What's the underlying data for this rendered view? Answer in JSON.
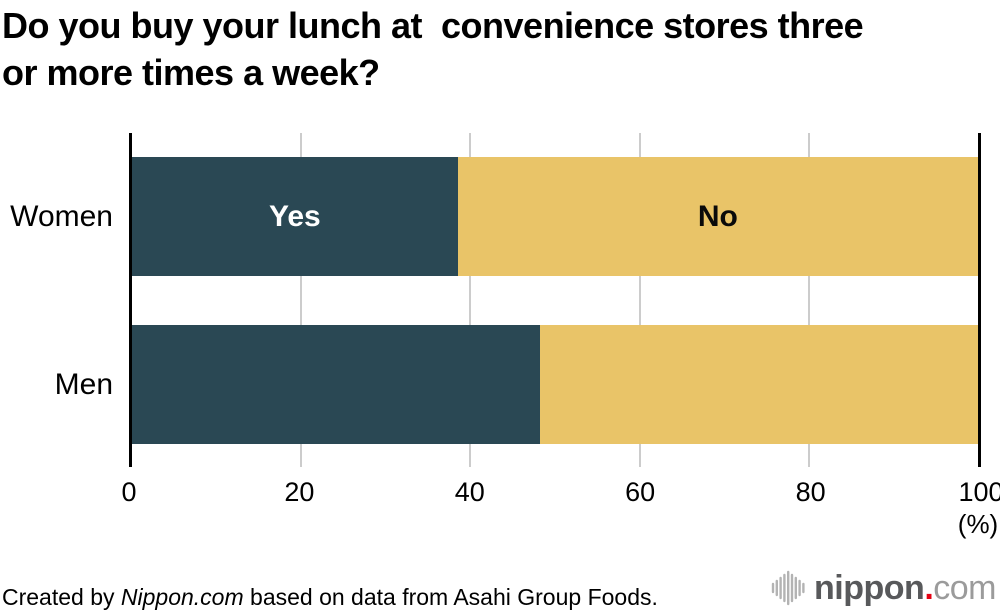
{
  "title": {
    "text": "Do you buy your lunch at  convenience stores three\nor more times a week?"
  },
  "chart_data": {
    "type": "bar",
    "orientation": "horizontal",
    "stacked": true,
    "title": "Do you buy your lunch at convenience stores three or more times a week?",
    "categories": [
      "Women",
      "Men"
    ],
    "series": [
      {
        "name": "Yes",
        "color": "#2a4854",
        "values": [
          38.5,
          48.2
        ]
      },
      {
        "name": "No",
        "color": "#e9c468",
        "values": [
          61.5,
          51.8
        ]
      }
    ],
    "xlim": [
      0,
      100
    ],
    "xticks": [
      "0",
      "20",
      "40",
      "60",
      "80",
      "100"
    ],
    "x_unit_label": "(%)",
    "grid": "vertical gray lines at 20/40/60/80, black boundary lines at 0 and 100",
    "legend": "labels drawn inside top bar segments",
    "segment_labels": {
      "yes": "Yes",
      "no": "No"
    }
  },
  "footer": {
    "prefix": "Created by ",
    "brand": "Nippon.com",
    "suffix": " based on data from Asahi Group Foods."
  },
  "logo": {
    "name": "nippon",
    "dot": ".",
    "tld": "com"
  },
  "colors": {
    "yes_bar": "#2a4854",
    "no_bar": "#e9c468",
    "gridline": "#cccccc",
    "axis": "#000000",
    "logo_icon_gray": "#b3b3b3",
    "logo_name_gray": "#58595b",
    "logo_tld_gray": "#9b9b9b",
    "logo_dot_red": "#e60012"
  }
}
